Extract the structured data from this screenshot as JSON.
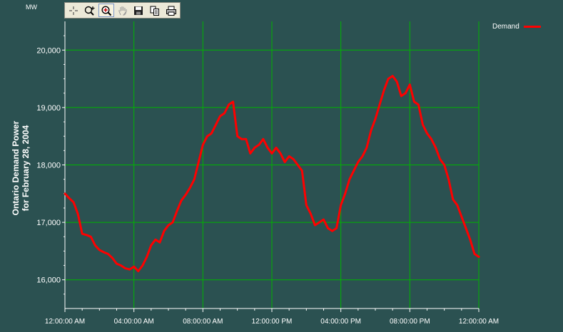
{
  "colors": {
    "background": "#2b5151",
    "grid": "#00b400",
    "axis": "#ffffff",
    "series": "#ff0000",
    "text": "#ffffff"
  },
  "toolbar": {
    "tools": [
      {
        "name": "crosshair-icon",
        "active": false
      },
      {
        "name": "zoom-in-icon",
        "active": false
      },
      {
        "name": "zoom-box-icon",
        "active": true
      },
      {
        "name": "pan-hand-icon",
        "active": false
      },
      {
        "name": "save-icon",
        "active": false
      },
      {
        "name": "copy-icon",
        "active": false
      },
      {
        "name": "print-icon",
        "active": false
      }
    ]
  },
  "chart_data": {
    "type": "line",
    "ylabel_line1": "Ontario Demand Power",
    "ylabel_line2": "for February 28, 2004",
    "y_unit": "MW",
    "ylim": [
      15500,
      20500
    ],
    "y_ticks": [
      16000,
      17000,
      18000,
      19000,
      20000
    ],
    "y_tick_labels": [
      "16,000",
      "17,000",
      "18,000",
      "19,000",
      "20,000"
    ],
    "xlim": [
      0,
      24
    ],
    "x_ticks": [
      0,
      4,
      8,
      12,
      16,
      20,
      24
    ],
    "x_tick_labels": [
      "12:00:00 AM",
      "04:00:00 AM",
      "08:00:00 AM",
      "12:00:00 PM",
      "04:00:00 PM",
      "08:00:00 PM",
      "12:00:00 AM"
    ],
    "grid": true,
    "legend_position": "top-right",
    "series": [
      {
        "name": "Demand",
        "x": [
          0,
          0.25,
          0.5,
          0.75,
          1.0,
          1.25,
          1.5,
          1.75,
          2.0,
          2.25,
          2.5,
          2.75,
          3.0,
          3.25,
          3.5,
          3.75,
          4.0,
          4.25,
          4.5,
          4.75,
          5.0,
          5.25,
          5.5,
          5.75,
          6.0,
          6.25,
          6.5,
          6.75,
          7.0,
          7.25,
          7.5,
          7.75,
          8.0,
          8.25,
          8.5,
          8.75,
          9.0,
          9.25,
          9.5,
          9.75,
          10.0,
          10.25,
          10.5,
          10.75,
          11.0,
          11.25,
          11.5,
          11.75,
          12.0,
          12.25,
          12.5,
          12.75,
          13.0,
          13.25,
          13.5,
          13.75,
          14.0,
          14.25,
          14.5,
          14.75,
          15.0,
          15.25,
          15.5,
          15.75,
          16.0,
          16.25,
          16.5,
          16.75,
          17.0,
          17.25,
          17.5,
          17.75,
          18.0,
          18.25,
          18.5,
          18.75,
          19.0,
          19.25,
          19.5,
          19.75,
          20.0,
          20.25,
          20.5,
          20.75,
          21.0,
          21.25,
          21.5,
          21.75,
          22.0,
          22.25,
          22.5,
          22.75,
          23.0,
          23.25,
          23.5,
          23.75,
          24.0
        ],
        "values": [
          17500,
          17420,
          17350,
          17150,
          16800,
          16780,
          16750,
          16600,
          16520,
          16480,
          16450,
          16380,
          16280,
          16250,
          16200,
          16180,
          16230,
          16150,
          16250,
          16400,
          16600,
          16700,
          16650,
          16850,
          16950,
          17000,
          17200,
          17380,
          17480,
          17600,
          17750,
          18050,
          18350,
          18500,
          18550,
          18700,
          18850,
          18900,
          19050,
          19100,
          18500,
          18450,
          18450,
          18200,
          18300,
          18350,
          18450,
          18300,
          18200,
          18300,
          18200,
          18050,
          18150,
          18100,
          18000,
          17900,
          17300,
          17150,
          16950,
          17000,
          17050,
          16900,
          16850,
          16900,
          17300,
          17500,
          17750,
          17900,
          18050,
          18150,
          18300,
          18600,
          18800,
          19050,
          19300,
          19500,
          19550,
          19450,
          19200,
          19250,
          19400,
          19100,
          19050,
          18700,
          18550,
          18450,
          18300,
          18100,
          18000,
          17750,
          17400,
          17300,
          17100,
          16900,
          16700,
          16450,
          16400
        ]
      }
    ]
  }
}
